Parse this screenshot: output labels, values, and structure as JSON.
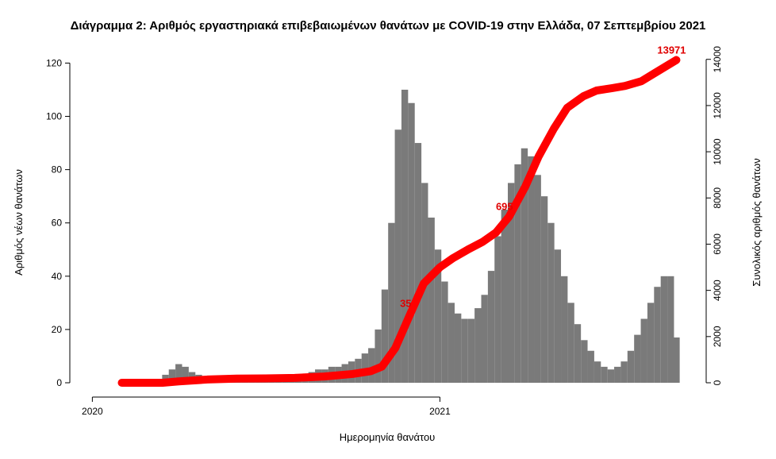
{
  "chart_data": {
    "type": "bar",
    "title": "Διάγραμμα 2: Αριθμός εργαστηριακά επιβεβαιωμένων θανάτων με COVID-19 στην Ελλάδα, 07 Σεπτεμβρίου 2021",
    "xlabel": "Ημερομηνία θανάτου",
    "ylabel_left": "Αριθμός νέων θανάτων",
    "ylabel_right": "Συνολικός αριθμός θανάτων",
    "x_ticks": [
      "2020",
      "2021"
    ],
    "y_left_ticks": [
      0,
      20,
      40,
      60,
      80,
      100,
      120
    ],
    "y_right_ticks": [
      0,
      2000,
      4000,
      6000,
      8000,
      10000,
      12000,
      14000
    ],
    "ylim_left": [
      0,
      124
    ],
    "ylim_right": [
      0,
      14300
    ],
    "series": [
      {
        "type": "bar",
        "color": "#7a7a7a",
        "points": [
          [
            "2020-03-11",
            1
          ],
          [
            "2020-03-18",
            3
          ],
          [
            "2020-03-25",
            5
          ],
          [
            "2020-04-01",
            7
          ],
          [
            "2020-04-08",
            6
          ],
          [
            "2020-04-15",
            4
          ],
          [
            "2020-04-22",
            3
          ],
          [
            "2020-04-29",
            2
          ],
          [
            "2020-05-06",
            2
          ],
          [
            "2020-05-13",
            1
          ],
          [
            "2020-05-20",
            1
          ],
          [
            "2020-05-27",
            1
          ],
          [
            "2020-06-03",
            1
          ],
          [
            "2020-06-10",
            1
          ],
          [
            "2020-06-17",
            1
          ],
          [
            "2020-06-24",
            1
          ],
          [
            "2020-07-01",
            1
          ],
          [
            "2020-07-08",
            1
          ],
          [
            "2020-07-15",
            1
          ],
          [
            "2020-07-22",
            1
          ],
          [
            "2020-07-29",
            2
          ],
          [
            "2020-08-05",
            2
          ],
          [
            "2020-08-12",
            3
          ],
          [
            "2020-08-19",
            4
          ],
          [
            "2020-08-26",
            5
          ],
          [
            "2020-09-02",
            5
          ],
          [
            "2020-09-09",
            6
          ],
          [
            "2020-09-16",
            6
          ],
          [
            "2020-09-23",
            7
          ],
          [
            "2020-09-30",
            8
          ],
          [
            "2020-10-07",
            9
          ],
          [
            "2020-10-14",
            11
          ],
          [
            "2020-10-21",
            13
          ],
          [
            "2020-10-28",
            20
          ],
          [
            "2020-11-04",
            35
          ],
          [
            "2020-11-11",
            60
          ],
          [
            "2020-11-18",
            95
          ],
          [
            "2020-11-25",
            110
          ],
          [
            "2020-12-02",
            105
          ],
          [
            "2020-12-09",
            90
          ],
          [
            "2020-12-16",
            75
          ],
          [
            "2020-12-23",
            62
          ],
          [
            "2020-12-30",
            50
          ],
          [
            "2021-01-06",
            38
          ],
          [
            "2021-01-13",
            30
          ],
          [
            "2021-01-20",
            26
          ],
          [
            "2021-01-27",
            24
          ],
          [
            "2021-02-03",
            24
          ],
          [
            "2021-02-10",
            28
          ],
          [
            "2021-02-17",
            33
          ],
          [
            "2021-02-24",
            42
          ],
          [
            "2021-03-03",
            55
          ],
          [
            "2021-03-10",
            65
          ],
          [
            "2021-03-17",
            75
          ],
          [
            "2021-03-24",
            82
          ],
          [
            "2021-03-31",
            88
          ],
          [
            "2021-04-07",
            85
          ],
          [
            "2021-04-14",
            78
          ],
          [
            "2021-04-21",
            70
          ],
          [
            "2021-04-28",
            60
          ],
          [
            "2021-05-05",
            50
          ],
          [
            "2021-05-12",
            40
          ],
          [
            "2021-05-19",
            30
          ],
          [
            "2021-05-26",
            22
          ],
          [
            "2021-06-02",
            16
          ],
          [
            "2021-06-09",
            12
          ],
          [
            "2021-06-16",
            8
          ],
          [
            "2021-06-23",
            6
          ],
          [
            "2021-06-30",
            5
          ],
          [
            "2021-07-07",
            6
          ],
          [
            "2021-07-14",
            8
          ],
          [
            "2021-07-21",
            12
          ],
          [
            "2021-07-28",
            18
          ],
          [
            "2021-08-04",
            24
          ],
          [
            "2021-08-11",
            30
          ],
          [
            "2021-08-18",
            36
          ],
          [
            "2021-08-25",
            40
          ],
          [
            "2021-09-01",
            40
          ],
          [
            "2021-09-07",
            17
          ]
        ]
      },
      {
        "type": "line",
        "axis": "right",
        "color": "#ff0000",
        "points": [
          [
            "2020-02-01",
            0
          ],
          [
            "2020-03-15",
            0
          ],
          [
            "2020-04-01",
            60
          ],
          [
            "2020-05-01",
            140
          ],
          [
            "2020-06-01",
            180
          ],
          [
            "2020-07-01",
            190
          ],
          [
            "2020-08-01",
            210
          ],
          [
            "2020-09-01",
            270
          ],
          [
            "2020-10-01",
            380
          ],
          [
            "2020-10-20",
            500
          ],
          [
            "2020-11-01",
            700
          ],
          [
            "2020-11-15",
            1500
          ],
          [
            "2020-12-01",
            3000
          ],
          [
            "2020-12-15",
            4300
          ],
          [
            "2021-01-01",
            5000
          ],
          [
            "2021-01-15",
            5400
          ],
          [
            "2021-02-01",
            5800
          ],
          [
            "2021-02-15",
            6100
          ],
          [
            "2021-03-01",
            6500
          ],
          [
            "2021-03-15",
            7200
          ],
          [
            "2021-04-01",
            8500
          ],
          [
            "2021-04-15",
            9800
          ],
          [
            "2021-05-01",
            11000
          ],
          [
            "2021-05-15",
            11900
          ],
          [
            "2021-06-01",
            12400
          ],
          [
            "2021-06-15",
            12650
          ],
          [
            "2021-07-01",
            12750
          ],
          [
            "2021-07-15",
            12850
          ],
          [
            "2021-08-01",
            13050
          ],
          [
            "2021-08-15",
            13400
          ],
          [
            "2021-09-07",
            13971
          ]
        ]
      }
    ],
    "annotations": [
      {
        "text": "13971",
        "x": "2021-09-07",
        "y_right": 13971,
        "color": "#e00000"
      },
      {
        "text": "695",
        "x": "2021-03-15",
        "y_right": 7200,
        "color": "#e00000"
      },
      {
        "text": "35",
        "x": "2020-12-01",
        "y_right": 3000,
        "color": "#e00000"
      }
    ]
  }
}
